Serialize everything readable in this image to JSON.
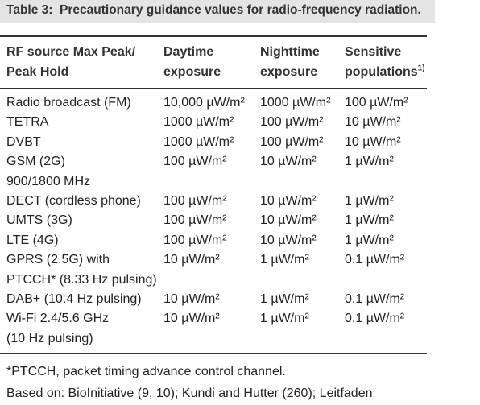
{
  "table": {
    "title_label": "Table 3:",
    "title": "Precautionary guidance values for radio-frequency radiation.",
    "header": [
      [
        "RF source Max Peak/",
        "Peak Hold"
      ],
      [
        "Daytime",
        "exposure"
      ],
      [
        "Nighttime",
        "exposure"
      ],
      [
        "Sensitive",
        "populations"
      ]
    ],
    "header_note_ref": "1)",
    "rows": [
      [
        [
          "Radio broadcast (FM)"
        ],
        [
          "10,000 µW/m²"
        ],
        [
          "1000 µW/m²"
        ],
        [
          "100 µW/m²"
        ]
      ],
      [
        [
          "TETRA"
        ],
        [
          "1000 µW/m²"
        ],
        [
          "100 µW/m²"
        ],
        [
          "10 µW/m²"
        ]
      ],
      [
        [
          "DVBT"
        ],
        [
          "1000 µW/m²"
        ],
        [
          "100 µW/m²"
        ],
        [
          "10 µW/m²"
        ]
      ],
      [
        [
          "GSM (2G)",
          "900/1800 MHz"
        ],
        [
          "100 µW/m²"
        ],
        [
          "10 µW/m²"
        ],
        [
          "1 µW/m²"
        ]
      ],
      [
        [
          "DECT (cordless phone)"
        ],
        [
          "100 µW/m²"
        ],
        [
          "10 µW/m²"
        ],
        [
          "1 µW/m²"
        ]
      ],
      [
        [
          "UMTS (3G)"
        ],
        [
          "100 µW/m²"
        ],
        [
          "10 µW/m²"
        ],
        [
          "1 µW/m²"
        ]
      ],
      [
        [
          "LTE (4G)"
        ],
        [
          "100 µW/m²"
        ],
        [
          "10 µW/m²"
        ],
        [
          "1 µW/m²"
        ]
      ],
      [
        [
          "GPRS (2.5G) with",
          "PTCCH* (8.33 Hz pulsing)"
        ],
        [
          "10 µW/m²"
        ],
        [
          "1 µW/m²"
        ],
        [
          "0.1 µW/m²"
        ]
      ],
      [
        [
          "DAB+ (10.4 Hz pulsing)"
        ],
        [
          "10 µW/m²"
        ],
        [
          "1 µW/m²"
        ],
        [
          "0.1 µW/m²"
        ]
      ],
      [
        [
          "Wi-Fi 2.4/5.6 GHz",
          "(10 Hz pulsing)"
        ],
        [
          "10 µW/m²"
        ],
        [
          "1 µW/m²"
        ],
        [
          "0.1 µW/m²"
        ]
      ]
    ],
    "footnotes": [
      "*PTCCH, packet timing advance control channel.",
      "Based on: BioInitiative (9, 10); Kundi and Hutter (260); Leitfaden"
    ]
  }
}
